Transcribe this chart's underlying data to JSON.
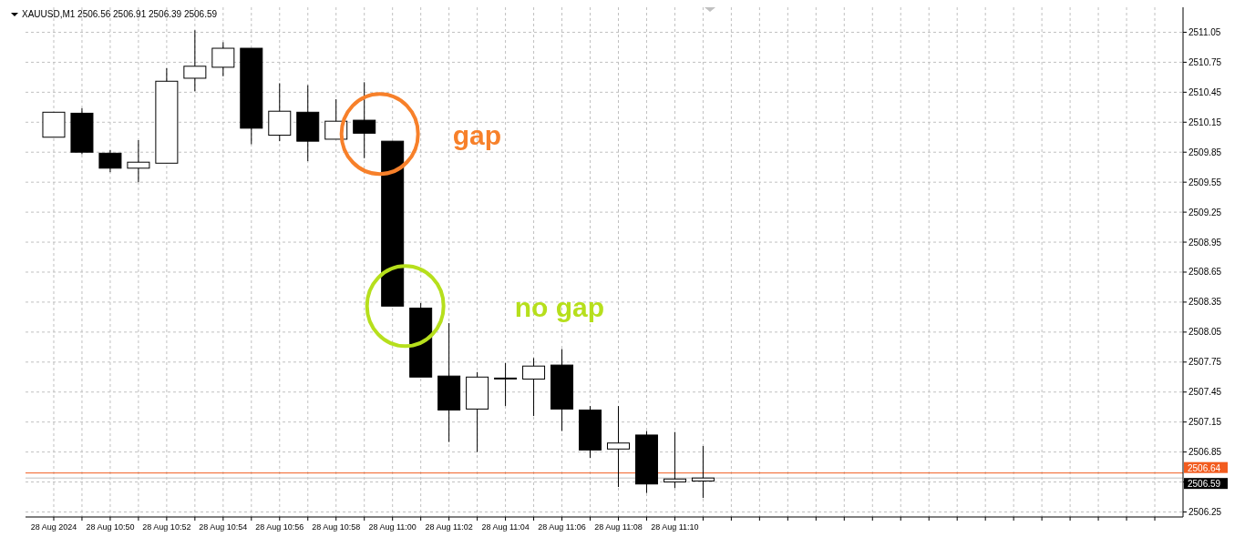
{
  "chart_data": {
    "type": "candlestick",
    "title": "XAUUSD,M1  2506.56 2506.91 2506.39 2506.59",
    "x": [
      "2024-08-28T10:48",
      "2024-08-28T10:49",
      "2024-08-28T10:50",
      "2024-08-28T10:51",
      "2024-08-28T10:52",
      "2024-08-28T10:53",
      "2024-08-28T10:54",
      "2024-08-28T10:55",
      "2024-08-28T10:56",
      "2024-08-28T10:57",
      "2024-08-28T10:58",
      "2024-08-28T10:59",
      "2024-08-28T11:00",
      "2024-08-28T11:01",
      "2024-08-28T11:02",
      "2024-08-28T11:03",
      "2024-08-28T11:04",
      "2024-08-28T11:05",
      "2024-08-28T11:06",
      "2024-08-28T11:07",
      "2024-08-28T11:08",
      "2024-08-28T11:09",
      "2024-08-28T11:10",
      "2024-08-28T11:11"
    ],
    "ohlc": [
      [
        2510.0,
        2510.25,
        2510.0,
        2510.25
      ],
      [
        2510.24,
        2510.29,
        2509.83,
        2509.85
      ],
      [
        2509.84,
        2509.87,
        2509.65,
        2509.69
      ],
      [
        2509.69,
        2509.97,
        2509.55,
        2509.75
      ],
      [
        2509.74,
        2510.69,
        2509.74,
        2510.56
      ],
      [
        2510.59,
        2511.07,
        2510.46,
        2510.71
      ],
      [
        2510.7,
        2510.95,
        2510.61,
        2510.89
      ],
      [
        2510.89,
        2510.89,
        2509.93,
        2510.09
      ],
      [
        2510.02,
        2510.54,
        2509.96,
        2510.26
      ],
      [
        2510.25,
        2510.52,
        2509.76,
        2509.96
      ],
      [
        2509.98,
        2510.38,
        2509.98,
        2510.16
      ],
      [
        2510.17,
        2510.55,
        2509.79,
        2510.04
      ],
      [
        2509.96,
        2509.96,
        2508.31,
        2508.31
      ],
      [
        2508.29,
        2508.34,
        2507.6,
        2507.6
      ],
      [
        2507.61,
        2508.14,
        2506.95,
        2507.27
      ],
      [
        2507.28,
        2507.65,
        2506.85,
        2507.6
      ],
      [
        2507.59,
        2507.74,
        2507.31,
        2507.59
      ],
      [
        2507.58,
        2507.79,
        2507.21,
        2507.71
      ],
      [
        2507.72,
        2507.88,
        2507.06,
        2507.28
      ],
      [
        2507.27,
        2507.31,
        2506.79,
        2506.87
      ],
      [
        2506.88,
        2507.31,
        2506.5,
        2506.94
      ],
      [
        2507.02,
        2507.06,
        2506.44,
        2506.53
      ],
      [
        2506.55,
        2507.05,
        2506.49,
        2506.58
      ],
      [
        2506.56,
        2506.91,
        2506.39,
        2506.59
      ]
    ],
    "xlim": [
      "2024-08-28T10:47",
      "2024-08-28T11:28"
    ],
    "xticks": [
      {
        "value": "2024-08-28T10:48",
        "label": "28 Aug 2024"
      },
      {
        "value": "2024-08-28T10:49",
        "label": null
      },
      {
        "value": "2024-08-28T10:50",
        "label": "28 Aug 10:50"
      },
      {
        "value": "2024-08-28T10:51",
        "label": null
      },
      {
        "value": "2024-08-28T10:52",
        "label": "28 Aug 10:52"
      },
      {
        "value": "2024-08-28T10:53",
        "label": null
      },
      {
        "value": "2024-08-28T10:54",
        "label": "28 Aug 10:54"
      },
      {
        "value": "2024-08-28T10:55",
        "label": null
      },
      {
        "value": "2024-08-28T10:56",
        "label": "28 Aug 10:56"
      },
      {
        "value": "2024-08-28T10:57",
        "label": null
      },
      {
        "value": "2024-08-28T10:58",
        "label": "28 Aug 10:58"
      },
      {
        "value": "2024-08-28T10:59",
        "label": null
      },
      {
        "value": "2024-08-28T11:00",
        "label": "28 Aug 11:00"
      },
      {
        "value": "2024-08-28T11:01",
        "label": null
      },
      {
        "value": "2024-08-28T11:02",
        "label": "28 Aug 11:02"
      },
      {
        "value": "2024-08-28T11:03",
        "label": null
      },
      {
        "value": "2024-08-28T11:04",
        "label": "28 Aug 11:04"
      },
      {
        "value": "2024-08-28T11:05",
        "label": null
      },
      {
        "value": "2024-08-28T11:06",
        "label": "28 Aug 11:06"
      },
      {
        "value": "2024-08-28T11:07",
        "label": null
      },
      {
        "value": "2024-08-28T11:08",
        "label": "28 Aug 11:08"
      },
      {
        "value": "2024-08-28T11:09",
        "label": null
      },
      {
        "value": "2024-08-28T11:10",
        "label": "28 Aug 11:10"
      },
      {
        "value": "2024-08-28T11:11",
        "label": null
      },
      {
        "value": "2024-08-28T11:12",
        "label": null
      },
      {
        "value": "2024-08-28T11:13",
        "label": null
      },
      {
        "value": "2024-08-28T11:14",
        "label": null
      },
      {
        "value": "2024-08-28T11:15",
        "label": null
      },
      {
        "value": "2024-08-28T11:16",
        "label": null
      },
      {
        "value": "2024-08-28T11:17",
        "label": null
      },
      {
        "value": "2024-08-28T11:18",
        "label": null
      },
      {
        "value": "2024-08-28T11:19",
        "label": null
      },
      {
        "value": "2024-08-28T11:20",
        "label": null
      },
      {
        "value": "2024-08-28T11:21",
        "label": null
      },
      {
        "value": "2024-08-28T11:22",
        "label": null
      },
      {
        "value": "2024-08-28T11:23",
        "label": null
      },
      {
        "value": "2024-08-28T11:24",
        "label": null
      },
      {
        "value": "2024-08-28T11:25",
        "label": null
      },
      {
        "value": "2024-08-28T11:26",
        "label": null
      },
      {
        "value": "2024-08-28T11:27",
        "label": null
      }
    ],
    "ylim": [
      2506.2,
      2511.3
    ],
    "yticks": [
      2511.05,
      2510.75,
      2510.45,
      2510.15,
      2509.85,
      2509.55,
      2509.25,
      2508.95,
      2508.65,
      2508.35,
      2508.05,
      2507.75,
      2507.45,
      2507.15,
      2506.85,
      {
        "value": 2506.55,
        "label": null
      },
      2506.25
    ],
    "grid": true,
    "ref_lines": [
      {
        "axis": "y",
        "value": 2506.64,
        "label": "2506.64",
        "color": "#f25c1f"
      },
      {
        "axis": "y",
        "value": 2506.59,
        "label": "2506.59",
        "color": "#c0c0c0"
      }
    ],
    "annotations": [
      "gap",
      "no gap"
    ]
  }
}
